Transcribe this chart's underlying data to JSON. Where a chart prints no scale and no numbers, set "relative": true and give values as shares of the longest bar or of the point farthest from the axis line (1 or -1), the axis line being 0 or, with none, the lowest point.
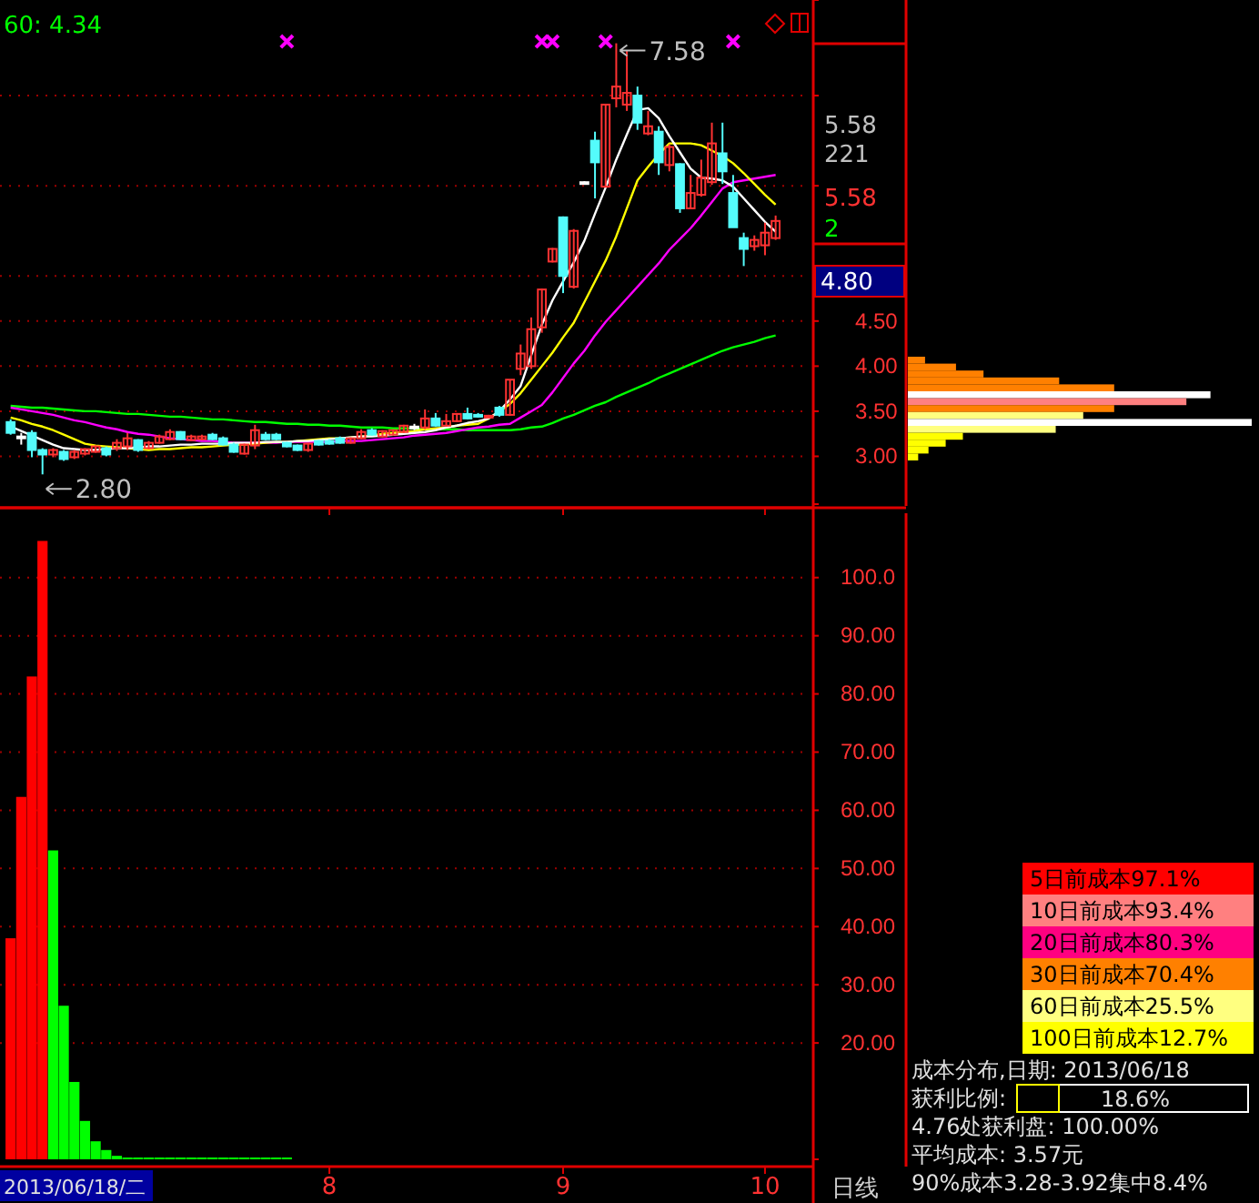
{
  "chart_data": [
    {
      "type": "candlestick",
      "categories": [
        null,
        null,
        null,
        null,
        null,
        null,
        null,
        null,
        null,
        null,
        null,
        null,
        null,
        null,
        null,
        null,
        null,
        null,
        null,
        null,
        null,
        null,
        null,
        null,
        null,
        null,
        null,
        null,
        null,
        null,
        "8",
        null,
        null,
        null,
        null,
        null,
        null,
        null,
        null,
        null,
        null,
        null,
        null,
        null,
        null,
        null,
        null,
        null,
        null,
        null,
        null,
        null,
        "9",
        null,
        null,
        null,
        null,
        null,
        null,
        null,
        null,
        null,
        null,
        null,
        null,
        null,
        null,
        null,
        null,
        null,
        null,
        "10",
        null
      ],
      "ohlc": [
        [
          3.38,
          3.41,
          3.24,
          3.26
        ],
        [
          3.22,
          3.26,
          3.13,
          3.22
        ],
        [
          3.26,
          3.29,
          2.99,
          3.07
        ],
        [
          3.07,
          3.09,
          2.8,
          3.02
        ],
        [
          3.02,
          3.09,
          2.99,
          3.07
        ],
        [
          3.05,
          3.07,
          2.95,
          2.97
        ],
        [
          2.99,
          3.07,
          2.97,
          3.05
        ],
        [
          3.03,
          3.09,
          3.01,
          3.08
        ],
        [
          3.05,
          3.12,
          3.04,
          3.11
        ],
        [
          3.09,
          3.11,
          3.0,
          3.02
        ],
        [
          3.09,
          3.19,
          3.06,
          3.15
        ],
        [
          3.11,
          3.26,
          3.07,
          3.2
        ],
        [
          3.18,
          3.19,
          3.05,
          3.07
        ],
        [
          3.09,
          3.17,
          3.08,
          3.15
        ],
        [
          3.15,
          3.24,
          3.14,
          3.22
        ],
        [
          3.19,
          3.3,
          3.18,
          3.27
        ],
        [
          3.27,
          3.28,
          3.18,
          3.19
        ],
        [
          3.18,
          3.24,
          3.17,
          3.22
        ],
        [
          3.19,
          3.24,
          3.18,
          3.22
        ],
        [
          3.24,
          3.26,
          3.18,
          3.19
        ],
        [
          3.2,
          3.22,
          3.12,
          3.13
        ],
        [
          3.13,
          3.15,
          3.04,
          3.05
        ],
        [
          3.03,
          3.14,
          3.02,
          3.13
        ],
        [
          3.12,
          3.35,
          3.08,
          3.29
        ],
        [
          3.24,
          3.27,
          3.18,
          3.19
        ],
        [
          3.24,
          3.26,
          3.18,
          3.19
        ],
        [
          3.15,
          3.16,
          3.1,
          3.11
        ],
        [
          3.12,
          3.13,
          3.06,
          3.07
        ],
        [
          3.07,
          3.15,
          3.05,
          3.14
        ],
        [
          3.17,
          3.18,
          3.12,
          3.13
        ],
        [
          3.17,
          3.19,
          3.13,
          3.14
        ],
        [
          3.2,
          3.22,
          3.14,
          3.15
        ],
        [
          3.15,
          3.21,
          3.14,
          3.2
        ],
        [
          3.2,
          3.3,
          3.19,
          3.27
        ],
        [
          3.29,
          3.31,
          3.23,
          3.24
        ],
        [
          3.22,
          3.29,
          3.21,
          3.28
        ],
        [
          3.24,
          3.3,
          3.23,
          3.29
        ],
        [
          3.27,
          3.35,
          3.26,
          3.34
        ],
        [
          3.33,
          3.36,
          3.29,
          3.33
        ],
        [
          3.32,
          3.52,
          3.3,
          3.42
        ],
        [
          3.42,
          3.48,
          3.33,
          3.34
        ],
        [
          3.34,
          3.47,
          3.33,
          3.39
        ],
        [
          3.39,
          3.48,
          3.38,
          3.47
        ],
        [
          3.47,
          3.54,
          3.41,
          3.42
        ],
        [
          3.46,
          3.48,
          3.43,
          3.44
        ],
        [
          3.44,
          3.46,
          3.43,
          3.45
        ],
        [
          3.54,
          3.56,
          3.44,
          3.46
        ],
        [
          3.46,
          3.85,
          3.45,
          3.85
        ],
        [
          3.97,
          4.24,
          3.9,
          4.14
        ],
        [
          4.0,
          4.54,
          3.97,
          4.41
        ],
        [
          4.43,
          4.86,
          4.37,
          4.85
        ],
        [
          5.16,
          5.31,
          5.15,
          5.3
        ],
        [
          5.65,
          5.66,
          4.81,
          5.0
        ],
        [
          4.88,
          5.52,
          4.86,
          5.5
        ],
        [
          6.04,
          6.05,
          6.03,
          6.04
        ],
        [
          6.5,
          6.6,
          5.86,
          6.26
        ],
        [
          5.99,
          6.91,
          5.98,
          6.9
        ],
        [
          6.97,
          7.58,
          6.87,
          7.1
        ],
        [
          6.9,
          7.5,
          6.83,
          7.03
        ],
        [
          7.0,
          7.1,
          6.62,
          6.7
        ],
        [
          6.58,
          6.83,
          6.56,
          6.66
        ],
        [
          6.6,
          6.66,
          6.12,
          6.26
        ],
        [
          6.23,
          6.46,
          6.16,
          6.43
        ],
        [
          6.24,
          6.25,
          5.7,
          5.75
        ],
        [
          5.75,
          6.12,
          5.74,
          5.92
        ],
        [
          5.9,
          6.29,
          5.88,
          6.09
        ],
        [
          6.04,
          6.7,
          6.01,
          6.47
        ],
        [
          6.36,
          6.7,
          6.02,
          6.16
        ],
        [
          5.92,
          6.12,
          5.54,
          5.54
        ],
        [
          5.42,
          5.48,
          5.11,
          5.3
        ],
        [
          5.33,
          5.45,
          5.28,
          5.4
        ],
        [
          5.34,
          5.59,
          5.23,
          5.48
        ],
        [
          5.42,
          5.67,
          5.4,
          5.61
        ]
      ],
      "colors": [
        "#54fcfc",
        "#ffffff",
        "#54fcfc",
        "#54fcfc",
        "#ff3232",
        "#54fcfc",
        "#ff3232",
        "#ff3232",
        "#ff3232",
        "#54fcfc",
        "#ff3232",
        "#ff3232",
        "#54fcfc",
        "#ff3232",
        "#ff3232",
        "#ff3232",
        "#54fcfc",
        "#ff3232",
        "#ff3232",
        "#54fcfc",
        "#54fcfc",
        "#54fcfc",
        "#ff3232",
        "#ff3232",
        "#54fcfc",
        "#54fcfc",
        "#54fcfc",
        "#54fcfc",
        "#ff3232",
        "#54fcfc",
        "#54fcfc",
        "#54fcfc",
        "#ff3232",
        "#ff3232",
        "#54fcfc",
        "#ff3232",
        "#ff3232",
        "#ff3232",
        "#ffffff",
        "#ff3232",
        "#54fcfc",
        "#ff3232",
        "#ff3232",
        "#54fcfc",
        "#54fcfc",
        "#ff3232",
        "#54fcfc",
        "#ff3232",
        "#ff3232",
        "#ff3232",
        "#ff3232",
        "#ff3232",
        "#54fcfc",
        "#ff3232",
        "#ffffff",
        "#54fcfc",
        "#ff3232",
        "#ff3232",
        "#ff3232",
        "#54fcfc",
        "#ff3232",
        "#54fcfc",
        "#ff3232",
        "#54fcfc",
        "#ff3232",
        "#ff3232",
        "#ff3232",
        "#54fcfc",
        "#54fcfc",
        "#54fcfc",
        "#ff3232",
        "#ff3232",
        "#ff3232"
      ],
      "series": [
        {
          "type": "line",
          "color": "#00ff00",
          "values": [
            3.56,
            3.55,
            3.54,
            3.54,
            3.53,
            3.52,
            3.51,
            3.5,
            3.5,
            3.49,
            3.48,
            3.47,
            3.47,
            3.46,
            3.45,
            3.44,
            3.44,
            3.43,
            3.42,
            3.41,
            3.41,
            3.4,
            3.39,
            3.38,
            3.38,
            3.37,
            3.36,
            3.36,
            3.35,
            3.35,
            3.34,
            3.34,
            3.33,
            3.32,
            3.32,
            3.32,
            3.31,
            3.31,
            3.31,
            3.3,
            3.3,
            3.3,
            3.3,
            3.29,
            3.29,
            3.29,
            3.29,
            3.29,
            3.3,
            3.32,
            3.33,
            3.37,
            3.42,
            3.46,
            3.51,
            3.56,
            3.6,
            3.66,
            3.71,
            3.76,
            3.81,
            3.87,
            3.92,
            3.97,
            4.02,
            4.07,
            4.12,
            4.17,
            4.21,
            4.24,
            4.27,
            4.31,
            4.34
          ]
        },
        {
          "type": "line",
          "color": "#ff00ff",
          "values": [
            3.54,
            3.52,
            3.5,
            3.48,
            3.46,
            3.43,
            3.4,
            3.38,
            3.35,
            3.32,
            3.3,
            3.27,
            3.25,
            3.24,
            3.22,
            3.2,
            3.19,
            3.18,
            3.17,
            3.17,
            3.16,
            3.15,
            3.15,
            3.15,
            3.15,
            3.15,
            3.16,
            3.16,
            3.16,
            3.16,
            3.16,
            3.17,
            3.17,
            3.17,
            3.18,
            3.19,
            3.2,
            3.21,
            3.23,
            3.24,
            3.25,
            3.26,
            3.28,
            3.3,
            3.32,
            3.33,
            3.35,
            3.36,
            3.43,
            3.5,
            3.57,
            3.71,
            3.87,
            4.03,
            4.17,
            4.34,
            4.49,
            4.62,
            4.75,
            4.88,
            5.01,
            5.14,
            5.29,
            5.41,
            5.53,
            5.67,
            5.82,
            5.97,
            6.04,
            6.06,
            6.08,
            6.1,
            6.12
          ]
        },
        {
          "type": "line",
          "color": "#ffff00",
          "values": [
            3.43,
            3.4,
            3.36,
            3.33,
            3.29,
            3.24,
            3.19,
            3.14,
            3.12,
            3.11,
            3.1,
            3.09,
            3.08,
            3.07,
            3.08,
            3.08,
            3.09,
            3.1,
            3.1,
            3.11,
            3.12,
            3.13,
            3.13,
            3.14,
            3.15,
            3.16,
            3.16,
            3.17,
            3.18,
            3.19,
            3.2,
            3.2,
            3.21,
            3.22,
            3.23,
            3.25,
            3.26,
            3.27,
            3.28,
            3.3,
            3.31,
            3.32,
            3.34,
            3.35,
            3.36,
            3.42,
            3.5,
            3.58,
            3.7,
            3.85,
            4.0,
            4.15,
            4.32,
            4.48,
            4.71,
            4.94,
            5.17,
            5.44,
            5.75,
            6.06,
            6.21,
            6.35,
            6.47,
            6.47,
            6.47,
            6.45,
            6.39,
            6.33,
            6.25,
            6.14,
            6.02,
            5.9,
            5.79
          ]
        },
        {
          "type": "line",
          "color": "#ffffff",
          "values": [
            3.33,
            3.28,
            3.23,
            3.18,
            3.13,
            3.09,
            3.08,
            3.07,
            3.07,
            3.08,
            3.09,
            3.09,
            3.1,
            3.11,
            3.11,
            3.12,
            3.13,
            3.13,
            3.14,
            3.14,
            3.14,
            3.15,
            3.15,
            3.15,
            3.16,
            3.16,
            3.16,
            3.17,
            3.17,
            3.18,
            3.19,
            3.2,
            3.21,
            3.22,
            3.22,
            3.23,
            3.24,
            3.25,
            3.26,
            3.27,
            3.29,
            3.32,
            3.34,
            3.37,
            3.39,
            3.42,
            3.5,
            3.63,
            3.78,
            4.12,
            4.46,
            4.73,
            4.94,
            5.15,
            5.39,
            5.69,
            5.98,
            6.29,
            6.57,
            6.84,
            6.86,
            6.75,
            6.55,
            6.37,
            6.19,
            6.09,
            6.08,
            6.06,
            5.99,
            5.86,
            5.73,
            5.6,
            5.49
          ]
        },
        {
          "type": "scatter",
          "color": "#ff00ff",
          "marker": "cross",
          "values": [
            null,
            null,
            null,
            null,
            null,
            null,
            null,
            null,
            null,
            null,
            null,
            null,
            null,
            null,
            null,
            null,
            null,
            null,
            null,
            null,
            null,
            null,
            null,
            null,
            null,
            null,
            7.6,
            null,
            null,
            null,
            null,
            null,
            null,
            null,
            null,
            null,
            null,
            null,
            null,
            null,
            null,
            null,
            null,
            null,
            null,
            null,
            null,
            null,
            null,
            null,
            7.6,
            7.6,
            null,
            null,
            null,
            null,
            7.6,
            null,
            null,
            null,
            null,
            null,
            null,
            null,
            null,
            null,
            null,
            null,
            7.6,
            null,
            null,
            null,
            null
          ]
        }
      ],
      "ylim": [
        2.47,
        8.06
      ],
      "yticks": [
        {
          "value": 3,
          "label": "3.00"
        },
        {
          "value": 3.5,
          "label": "3.50"
        },
        {
          "value": 4,
          "label": "4.00"
        },
        {
          "value": 4.5,
          "label": "4.50"
        },
        {
          "value": 5,
          "label": null
        },
        {
          "value": 6,
          "label": null
        },
        {
          "value": 7,
          "label": null
        }
      ],
      "grid": "y",
      "tick_labels": "y",
      "annotations": [
        "60: 4.34",
        "7.58",
        "2.80",
        "4.80",
        "5.58",
        "221",
        "5.58",
        "2"
      ]
    },
    {
      "type": "bar",
      "categories": [
        null,
        null,
        null,
        null,
        null,
        null,
        null,
        null,
        null,
        null,
        null,
        null,
        null,
        null,
        null,
        null,
        null,
        null,
        null,
        null,
        null,
        null,
        null,
        null,
        null,
        null,
        null,
        null,
        null,
        null,
        "8",
        null,
        null,
        null,
        null,
        null,
        null,
        null,
        null,
        null,
        null,
        null,
        null,
        null,
        null,
        null,
        null,
        null,
        null,
        null,
        null,
        null,
        "9",
        null,
        null,
        null,
        null,
        null,
        null,
        null,
        null,
        null,
        null,
        null,
        null,
        null,
        null,
        null,
        null,
        null,
        null,
        "10",
        null
      ],
      "values": [
        38.0,
        62.3,
        83.0,
        106.3,
        53.1,
        26.4,
        13.3,
        6.6,
        3.1,
        1.6,
        0.6,
        0.2,
        0.1,
        0.1,
        0.1,
        0.1,
        0.1,
        0.1,
        0.1,
        0.1,
        0.1,
        0.1,
        0.1,
        0.1,
        0.1,
        0.1,
        0.1,
        null,
        null,
        null,
        null,
        null,
        null,
        null,
        null,
        null,
        null,
        null,
        null,
        null,
        null,
        null,
        null,
        null,
        null,
        null,
        null,
        null,
        null,
        null,
        null,
        null,
        null,
        null,
        null,
        null,
        null,
        null,
        null,
        null,
        null,
        null,
        null,
        null,
        null,
        null,
        null,
        null,
        null,
        null,
        null,
        null,
        null
      ],
      "colors": [
        "#ff0000",
        "#ff0000",
        "#ff0000",
        "#ff0000",
        "#00ff00",
        "#00ff00",
        "#00ff00",
        "#00ff00",
        "#00ff00",
        "#00ff00",
        "#00ff00",
        "#00ff00",
        "#00ff00",
        "#00ff00",
        "#00ff00",
        "#00ff00",
        "#00ff00",
        "#00ff00",
        "#00ff00",
        "#00ff00",
        "#00ff00",
        "#00ff00",
        "#00ff00",
        "#00ff00",
        "#00ff00",
        "#00ff00",
        "#00ff00",
        null,
        null,
        null,
        null,
        null,
        null,
        null,
        null,
        null,
        null,
        null,
        null,
        null,
        null,
        null,
        null,
        null,
        null,
        null,
        null,
        null,
        null,
        null,
        null,
        null,
        null,
        null,
        null,
        null,
        null,
        null,
        null,
        null,
        null,
        null,
        null,
        null,
        null,
        null,
        null,
        null,
        null,
        null,
        null,
        null,
        null
      ],
      "ylim": [
        0,
        112
      ],
      "yticks": [
        {
          "value": 20,
          "label": "20.00"
        },
        {
          "value": 30,
          "label": "30.00"
        },
        {
          "value": 40,
          "label": "40.00"
        },
        {
          "value": 50,
          "label": "50.00"
        },
        {
          "value": 60,
          "label": "60.00"
        },
        {
          "value": 70,
          "label": "70.00"
        },
        {
          "value": 80,
          "label": "80.00"
        },
        {
          "value": 90,
          "label": "90.00"
        },
        {
          "value": 100,
          "label": "100.0"
        }
      ],
      "grid": "y",
      "annotations": [
        "2013/06/18/二",
        "日线"
      ]
    },
    {
      "type": "bar",
      "orientation": "horizontal",
      "relative": true,
      "categories": [
        null,
        null,
        null,
        null,
        null,
        null,
        null,
        null,
        null,
        null,
        null,
        null,
        null,
        null,
        null
      ],
      "values": [
        0.05,
        0.14,
        0.22,
        0.44,
        0.6,
        0.88,
        0.81,
        0.6,
        0.51,
        1,
        0.43,
        0.16,
        0.11,
        0.06,
        0.03
      ],
      "colors": [
        "#ff8000",
        "#ff8000",
        "#ff8000",
        "#ff8000",
        "#ff8000",
        "#ffffff",
        "#ff8080",
        "#ff8000",
        "#ffff80",
        "#ffffff",
        "#ffff80",
        "#ffff00",
        "#ffff00",
        "#ffff00",
        "#ffff00"
      ]
    },
    {
      "type": "other",
      "annotations": [
        "5日前成本97.1%",
        "10日前成本93.4%",
        "20日前成本80.3%",
        "30日前成本70.4%",
        "60日前成本25.5%",
        "100日前成本12.7%",
        "成本分布,日期: 2013/06/18",
        "获利比例:",
        "18.6%",
        "4.76处获利盘: 100.00%",
        "平均成本: 3.57元",
        "90%成本3.28-3.92集中8.4%"
      ]
    }
  ]
}
